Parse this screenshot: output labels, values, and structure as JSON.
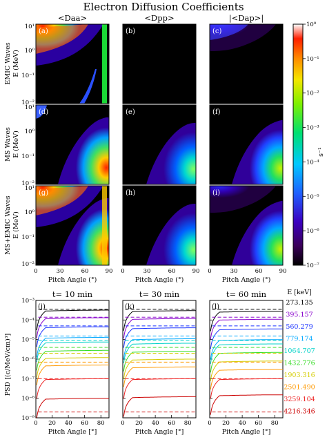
{
  "figure": {
    "title": "Electron Diffusion Coefficients",
    "columns": [
      "<Daa>",
      "<Dpp>",
      "|<Dap>|"
    ],
    "rows": [
      {
        "label": "EMIC Waves",
        "ylabel": "E (MeV)"
      },
      {
        "label": "MS Waves",
        "ylabel": "E (MeV)"
      },
      {
        "label": "MS+EMIC Waves",
        "ylabel": "E (MeV)"
      }
    ],
    "panel_letters": [
      "(a)",
      "(b)",
      "(c)",
      "(d)",
      "(e)",
      "(f)",
      "(g)",
      "(h)",
      "(i)"
    ],
    "bottom_letters": [
      "(j)",
      "(k)",
      "(l)"
    ],
    "bottom_titles": [
      "t= 10 min",
      "t= 30 min",
      "t= 60 min"
    ],
    "colorbar_unit": "s⁻¹",
    "energy_header": "E [keV]"
  },
  "chart_data": [
    {
      "type": "heatmap",
      "title": "Electron Diffusion Coefficients",
      "panels": [
        {
          "label": "(a)",
          "row": "EMIC Waves",
          "column": "<Daa>",
          "structure": "strong diffusion at high energy (>0.5 MeV) over low-mid pitch angles; band along loss-cone edge; strip near 90 deg"
        },
        {
          "label": "(b)",
          "row": "EMIC Waves",
          "column": "<Dpp>",
          "structure": "below 1e-7 everywhere"
        },
        {
          "label": "(c)",
          "row": "EMIC Waves",
          "column": "|<Dap>|",
          "structure": "weak band near top energies, low pitch angles"
        },
        {
          "label": "(d)",
          "row": "MS Waves",
          "column": "<Daa>",
          "structure": "tongue from ~0.02 MeV near 90 deg toward ~1 MeV at 30-60 deg; peak near 90 deg"
        },
        {
          "label": "(e)",
          "row": "MS Waves",
          "column": "<Dpp>",
          "structure": "similar tongue, weaker"
        },
        {
          "label": "(f)",
          "row": "MS Waves",
          "column": "|<Dap>|",
          "structure": "similar tongue, intermediate"
        },
        {
          "label": "(g)",
          "row": "MS+EMIC Waves",
          "column": "<Daa>",
          "structure": "sum of EMIC and MS"
        },
        {
          "label": "(h)",
          "row": "MS+EMIC Waves",
          "column": "<Dpp>",
          "structure": "MS tongue"
        },
        {
          "label": "(i)",
          "row": "MS+EMIC Waves",
          "column": "|<Dap>|",
          "structure": "MS tongue plus EMIC band"
        }
      ],
      "xlabel": "Pitch Angle (°)",
      "ylabel": "E (MeV)",
      "xlim": [
        0,
        90
      ],
      "ylim": [
        0.01,
        10
      ],
      "yscale": "log",
      "x_ticks": [
        "0",
        "30",
        "60",
        "90"
      ],
      "y_ticks": [
        "10¹",
        "10⁰",
        "10⁻¹",
        "10⁻²"
      ],
      "colorbar": {
        "scale": "log",
        "range": [
          1e-07,
          1
        ],
        "ticks": [
          "10⁰",
          "10⁻¹",
          "10⁻²",
          "10⁻³",
          "10⁻⁴",
          "10⁻⁵",
          "10⁻⁶",
          "10⁻⁷"
        ],
        "label": "s⁻¹",
        "colormap": "rainbow (black-purple-blue-cyan-green-yellow-orange-red-white)"
      }
    },
    {
      "type": "line",
      "panels": [
        "(j) t= 10 min",
        "(k) t= 30 min",
        "(l) t= 60 min"
      ],
      "xlabel": "Pitch Angle [°]",
      "ylabel": "PSD [(c/MeV/cm)³]",
      "xlim": [
        0,
        90
      ],
      "ylim": [
        1e-09,
        0.001
      ],
      "yscale": "log",
      "x_ticks": [
        "0",
        "20",
        "40",
        "60",
        "80"
      ],
      "y_ticks": [
        "10⁻³",
        "10⁻⁴",
        "10⁻⁵",
        "10⁻⁶",
        "10⁻⁷",
        "10⁻⁸",
        "10⁻⁹"
      ],
      "dashed_lines": "initial PSD for each energy",
      "solid_lines": "PSD at time t",
      "series": [
        {
          "name": "273.135",
          "color": "#000000",
          "initial": 0.00035,
          "values": {
            "t10": 0.00032,
            "t30": 0.0003,
            "t60": 0.00028
          }
        },
        {
          "name": "395.157",
          "color": "#8800cc",
          "initial": 0.00014,
          "values": {
            "t10": 0.00013,
            "t30": 0.00012,
            "t60": 0.00011
          }
        },
        {
          "name": "560.279",
          "color": "#1a33ff",
          "initial": 5e-05,
          "values": {
            "t10": 4.5e-05,
            "t30": 4e-05,
            "t60": 3.5e-05
          }
        },
        {
          "name": "779.174",
          "color": "#00a8ff",
          "initial": 1.5e-05,
          "values": {
            "t10": 1.3e-05,
            "t30": 1.1e-05,
            "t60": 1e-05
          }
        },
        {
          "name": "1064.707",
          "color": "#00d2c8",
          "initial": 9e-06,
          "values": {
            "t10": 7.5e-06,
            "t30": 6.5e-06,
            "t60": 6e-06
          }
        },
        {
          "name": "1432.776",
          "color": "#33dd22",
          "initial": 4e-06,
          "values": {
            "t10": 2.8e-06,
            "t30": 2.5e-06,
            "t60": 2.2e-06
          }
        },
        {
          "name": "1903.316",
          "color": "#d4cc00",
          "initial": 2e-06,
          "values": {
            "t10": 1.2e-06,
            "t30": 1e-06,
            "t60": 8e-07
          }
        },
        {
          "name": "2501.490",
          "color": "#ff9900",
          "initial": 7e-07,
          "values": {
            "t10": 5e-07,
            "t30": 4e-07,
            "t60": 3e-07
          }
        },
        {
          "name": "3259.104",
          "color": "#ee2222",
          "initial": 1e-07,
          "values": {
            "t10": 1e-07,
            "t30": 1e-07,
            "t60": 1e-07
          }
        },
        {
          "name": "4216.346",
          "color": "#cc0000",
          "initial": 2e-09,
          "values": {
            "t10": 1e-08,
            "t30": 1.2e-08,
            "t60": 1.5e-08
          }
        }
      ]
    }
  ]
}
